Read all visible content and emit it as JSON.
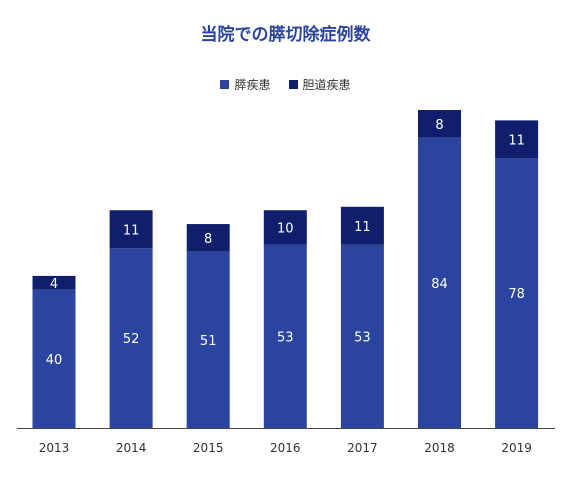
{
  "chart_data": {
    "type": "bar",
    "stacked": true,
    "title": "当院での膵切除症例数",
    "categories": [
      "2013",
      "2014",
      "2015",
      "2016",
      "2017",
      "2018",
      "2019"
    ],
    "series": [
      {
        "name": "膵疾患",
        "values": [
          40,
          52,
          51,
          53,
          53,
          84,
          78
        ],
        "color": "#2a44a0"
      },
      {
        "name": "胆道疾患",
        "values": [
          4,
          11,
          8,
          10,
          11,
          8,
          11
        ],
        "color": "#0f1f6b"
      }
    ],
    "ylim": [
      0,
      92
    ],
    "legend_position": "top-center",
    "grid": false,
    "title_color": "#2a44a0"
  }
}
